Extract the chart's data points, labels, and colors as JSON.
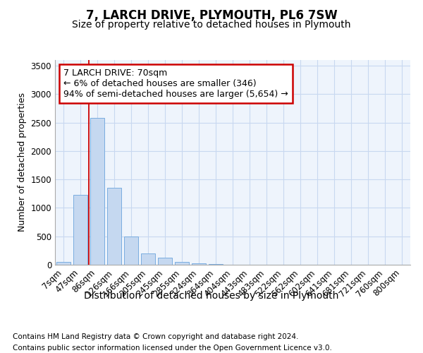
{
  "title1": "7, LARCH DRIVE, PLYMOUTH, PL6 7SW",
  "title2": "Size of property relative to detached houses in Plymouth",
  "xlabel": "Distribution of detached houses by size in Plymouth",
  "ylabel": "Number of detached properties",
  "bar_color": "#c5d8f0",
  "bar_edge_color": "#7aade0",
  "grid_color": "#c8d8f0",
  "plot_bg": "#eef4fc",
  "categories": [
    "7sqm",
    "47sqm",
    "86sqm",
    "126sqm",
    "166sqm",
    "205sqm",
    "245sqm",
    "285sqm",
    "324sqm",
    "364sqm",
    "404sqm",
    "443sqm",
    "483sqm",
    "522sqm",
    "562sqm",
    "602sqm",
    "641sqm",
    "681sqm",
    "721sqm",
    "760sqm",
    "800sqm"
  ],
  "values": [
    50,
    1230,
    2580,
    1350,
    500,
    200,
    120,
    50,
    30,
    10,
    0,
    0,
    0,
    0,
    0,
    0,
    0,
    0,
    0,
    0,
    0
  ],
  "ylim": [
    0,
    3600
  ],
  "yticks": [
    0,
    500,
    1000,
    1500,
    2000,
    2500,
    3000,
    3500
  ],
  "vline_x": 1.5,
  "vline_color": "#cc0000",
  "annotation_text": "7 LARCH DRIVE: 70sqm\n← 6% of detached houses are smaller (346)\n94% of semi-detached houses are larger (5,654) →",
  "annotation_box_color": "#ffffff",
  "annotation_border_color": "#cc0000",
  "footer1": "Contains HM Land Registry data © Crown copyright and database right 2024.",
  "footer2": "Contains public sector information licensed under the Open Government Licence v3.0.",
  "title1_fontsize": 12,
  "title2_fontsize": 10,
  "xlabel_fontsize": 10,
  "ylabel_fontsize": 9,
  "tick_fontsize": 8.5,
  "footer_fontsize": 7.5,
  "ann_fontsize": 9
}
